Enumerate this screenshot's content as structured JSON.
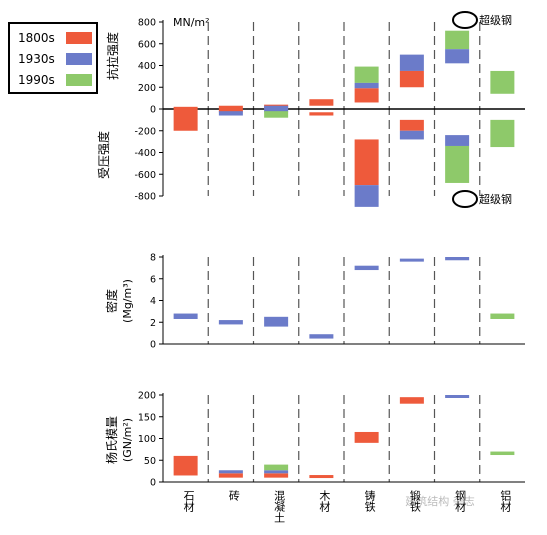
{
  "colors": {
    "1800s": "#ee5a3b",
    "1930s": "#6b7bc9",
    "1990s": "#8ec96a",
    "axis": "#000000",
    "divider": "#555555"
  },
  "legend": {
    "items": [
      {
        "label": "1800s",
        "color": "#ee5a3b"
      },
      {
        "label": "1930s",
        "color": "#6b7bc9"
      },
      {
        "label": "1990s",
        "color": "#8ec96a"
      }
    ]
  },
  "categories": [
    "石材",
    "砖",
    "混凝土",
    "木材",
    "铸铁",
    "锻铁",
    "钢材",
    "铝材"
  ],
  "annotations": {
    "super_steel_top": "超级钢",
    "super_steel_bottom": "超级钢",
    "strength_unit": "MN/m²",
    "watermark": "建筑结构 杂志"
  },
  "chart_data": [
    {
      "type": "bar",
      "ylabel_positive": "抗拉强度",
      "ylabel_negative": "受压强度",
      "ylim": [
        -800,
        800
      ],
      "yticks": [
        800,
        600,
        400,
        200,
        0,
        -200,
        -400,
        -600,
        -800
      ],
      "ranges": [
        {
          "category": "石材",
          "series": "1800s",
          "low": -200,
          "high": 20
        },
        {
          "category": "砖",
          "series": "1800s",
          "low": -30,
          "high": 30
        },
        {
          "category": "砖",
          "series": "1930s",
          "low": -60,
          "high": -20
        },
        {
          "category": "混凝土",
          "series": "1800s",
          "low": 0,
          "high": 40
        },
        {
          "category": "混凝土",
          "series": "1930s",
          "low": -30,
          "high": 30
        },
        {
          "category": "混凝土",
          "series": "1990s",
          "low": -80,
          "high": -20
        },
        {
          "category": "木材",
          "series": "1800s",
          "low": 30,
          "high": 90
        },
        {
          "category": "木材",
          "series": "1800s",
          "low": -60,
          "high": -30
        },
        {
          "category": "铸铁",
          "series": "1990s",
          "low": 240,
          "high": 390
        },
        {
          "category": "铸铁",
          "series": "1930s",
          "low": 190,
          "high": 240
        },
        {
          "category": "铸铁",
          "series": "1800s",
          "low": 60,
          "high": 190
        },
        {
          "category": "铸铁",
          "series": "1800s",
          "low": -700,
          "high": -280
        },
        {
          "category": "铸铁",
          "series": "1930s",
          "low": -900,
          "high": -700
        },
        {
          "category": "锻铁",
          "series": "1930s",
          "low": 350,
          "high": 500
        },
        {
          "category": "锻铁",
          "series": "1800s",
          "low": 200,
          "high": 350
        },
        {
          "category": "锻铁",
          "series": "1800s",
          "low": -200,
          "high": -100
        },
        {
          "category": "锻铁",
          "series": "1930s",
          "low": -280,
          "high": -200
        },
        {
          "category": "钢材",
          "series": "1990s",
          "low": 550,
          "high": 720
        },
        {
          "category": "钢材",
          "series": "1930s",
          "low": 420,
          "high": 550
        },
        {
          "category": "钢材",
          "series": "1930s",
          "low": -340,
          "high": -240
        },
        {
          "category": "钢材",
          "series": "1990s",
          "low": -680,
          "high": -340
        },
        {
          "category": "铝材",
          "series": "1990s",
          "low": 140,
          "high": 350
        },
        {
          "category": "铝材",
          "series": "1990s",
          "low": -350,
          "high": -100
        }
      ]
    },
    {
      "type": "bar",
      "ylabel": "密度",
      "yunit": "(Mg/m³)",
      "ylim": [
        0,
        8
      ],
      "yticks": [
        8,
        6,
        4,
        2,
        0
      ],
      "ranges": [
        {
          "category": "石材",
          "series": "1930s",
          "low": 2.3,
          "high": 2.8
        },
        {
          "category": "砖",
          "series": "1930s",
          "low": 1.8,
          "high": 2.2
        },
        {
          "category": "混凝土",
          "series": "1930s",
          "low": 1.6,
          "high": 2.5
        },
        {
          "category": "木材",
          "series": "1930s",
          "low": 0.5,
          "high": 0.9
        },
        {
          "category": "铸铁",
          "series": "1930s",
          "low": 6.8,
          "high": 7.2
        },
        {
          "category": "锻铁",
          "series": "1930s",
          "low": 7.6,
          "high": 7.85
        },
        {
          "category": "钢材",
          "series": "1930s",
          "low": 7.7,
          "high": 8.0
        },
        {
          "category": "铝材",
          "series": "1990s",
          "low": 2.3,
          "high": 2.8
        }
      ]
    },
    {
      "type": "bar",
      "ylabel": "杨氏模量",
      "yunit": "(GN/m²)",
      "ylim": [
        0,
        200
      ],
      "yticks": [
        200,
        150,
        100,
        50,
        0
      ],
      "ranges": [
        {
          "category": "石材",
          "series": "1800s",
          "low": 15,
          "high": 60
        },
        {
          "category": "砖",
          "series": "1800s",
          "low": 10,
          "high": 20
        },
        {
          "category": "砖",
          "series": "1930s",
          "low": 20,
          "high": 27
        },
        {
          "category": "混凝土",
          "series": "1800s",
          "low": 10,
          "high": 20
        },
        {
          "category": "混凝土",
          "series": "1930s",
          "low": 20,
          "high": 27
        },
        {
          "category": "混凝土",
          "series": "1990s",
          "low": 27,
          "high": 40
        },
        {
          "category": "木材",
          "series": "1800s",
          "low": 10,
          "high": 16
        },
        {
          "category": "铸铁",
          "series": "1800s",
          "low": 90,
          "high": 115
        },
        {
          "category": "锻铁",
          "series": "1800s",
          "low": 180,
          "high": 195
        },
        {
          "category": "钢材",
          "series": "1930s",
          "low": 200,
          "high": 212
        },
        {
          "category": "铝材",
          "series": "1990s",
          "low": 62,
          "high": 70
        }
      ]
    }
  ]
}
